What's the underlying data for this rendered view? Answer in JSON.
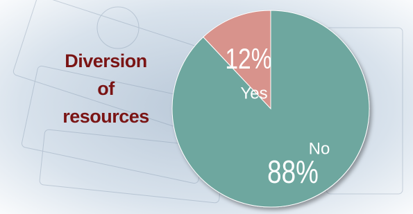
{
  "chart_data": {
    "type": "pie",
    "title": "Diversion of resources",
    "categories": [
      "Yes",
      "No"
    ],
    "values": [
      12,
      88
    ],
    "value_labels": [
      "12%",
      "88%"
    ],
    "colors": [
      "#d8938c",
      "#6ea79f"
    ]
  }
}
